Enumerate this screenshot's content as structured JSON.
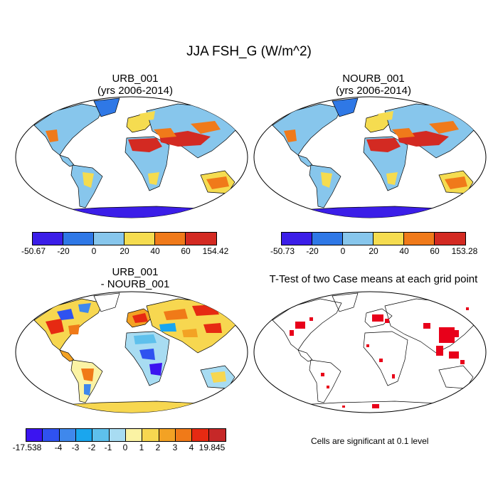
{
  "figure": {
    "title": "JJA FSH_G (W/m^2)"
  },
  "panels": {
    "urb": {
      "title_line1": "URB_001",
      "title_line2": "(yrs 2006-2014)",
      "colorbar": {
        "colors": [
          "#3b1ee8",
          "#2f78e6",
          "#87c6ec",
          "#f5dc50",
          "#f07a1a",
          "#d32a22"
        ],
        "labels": [
          "-50.67",
          "-20",
          "0",
          "20",
          "40",
          "60",
          "154.42"
        ]
      }
    },
    "nourb": {
      "title_line1": "NOURB_001",
      "title_line2": "(yrs 2006-2014)",
      "colorbar": {
        "colors": [
          "#3b1ee8",
          "#2f78e6",
          "#87c6ec",
          "#f5dc50",
          "#f07a1a",
          "#d32a22"
        ],
        "labels": [
          "-50.73",
          "-20",
          "0",
          "20",
          "40",
          "60",
          "153.28"
        ]
      }
    },
    "diff": {
      "title_line1": "URB_001",
      "title_line2": "- NOURB_001",
      "colorbar": {
        "colors": [
          "#3b14f0",
          "#2f52f0",
          "#3f88ec",
          "#1aa6ee",
          "#5ec0ec",
          "#a8dcf2",
          "#fbf3a4",
          "#f7d750",
          "#f3a224",
          "#f07a18",
          "#e62a12",
          "#c62828"
        ],
        "labels": [
          "-17.538",
          "-4",
          "-3",
          "-2",
          "-1",
          "0",
          "1",
          "2",
          "3",
          "4",
          "19.845"
        ]
      }
    },
    "ttest": {
      "title": "T-Test of two Case means at each grid point",
      "note": "Cells are significant at 0.1 level",
      "signif_color": "#e8001a"
    }
  }
}
